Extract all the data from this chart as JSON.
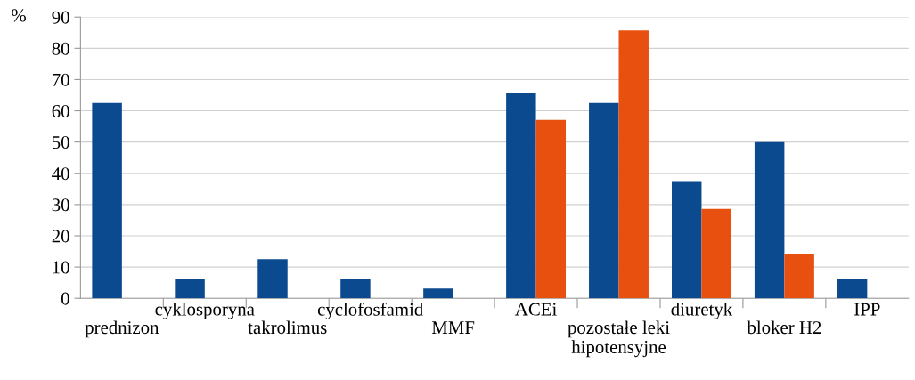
{
  "chart_data": {
    "type": "bar",
    "ylabel": "%",
    "categories": [
      "prednizon",
      "cyklosporyna",
      "takrolimus",
      "cyclofosfamid",
      "MMF",
      "ACEi",
      "pozostałe leki\nhipotensyjne",
      "diuretyk",
      "bloker H2",
      "IPP"
    ],
    "series": [
      {
        "color": "#0b4a8f",
        "values": [
          62.5,
          6.25,
          12.5,
          6.25,
          3.1,
          65.6,
          62.5,
          37.5,
          50,
          6.25
        ]
      },
      {
        "color": "#e8500f",
        "values": [
          null,
          null,
          null,
          null,
          null,
          57.1,
          85.7,
          28.6,
          14.3,
          null
        ]
      }
    ],
    "ylim": [
      0,
      90
    ],
    "yticks": [
      0,
      10,
      20,
      30,
      40,
      50,
      60,
      70,
      80,
      90
    ],
    "grid": "y"
  }
}
